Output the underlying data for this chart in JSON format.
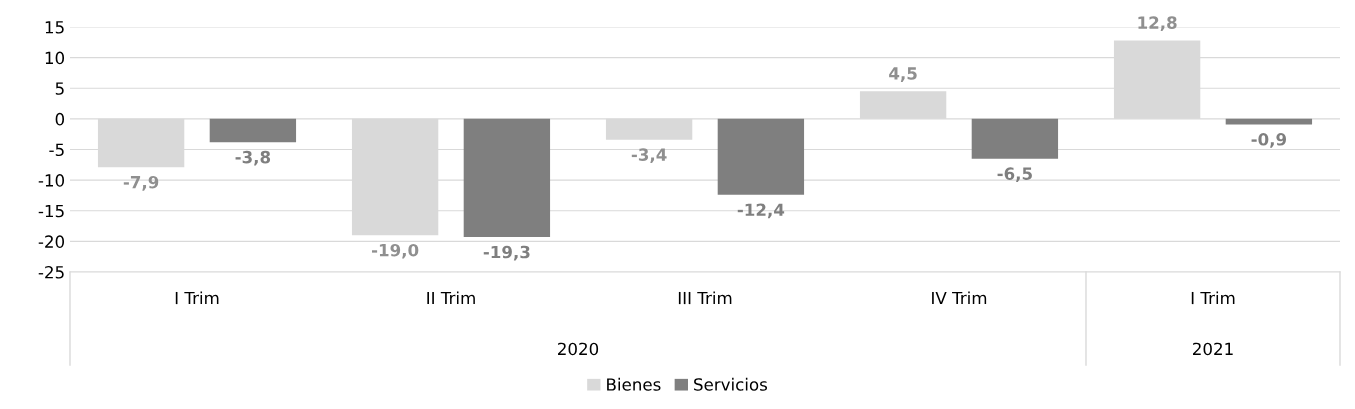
{
  "chart_data": {
    "type": "bar",
    "categories": [
      "I Trim",
      "II Trim",
      "III Trim",
      "IV Trim",
      "I Trim"
    ],
    "series": [
      {
        "name": "Bienes",
        "color": "#d9d9d9",
        "values": [
          -7.9,
          -19.0,
          -3.4,
          4.5,
          12.8
        ],
        "value_labels": [
          "-7,9",
          "-19,0",
          "-3,4",
          "4,5",
          "12,8"
        ]
      },
      {
        "name": "Servicios",
        "color": "#7f7f7f",
        "values": [
          -3.8,
          -19.3,
          -12.4,
          -6.5,
          -0.9
        ],
        "value_labels": [
          "-3,8",
          "-19,3",
          "-12,4",
          "-6,5",
          "-0,9"
        ]
      }
    ],
    "annotations": [
      "2020",
      "2021"
    ],
    "ylim": [
      -25,
      15
    ],
    "yticks": [
      -25,
      -20,
      -15,
      -10,
      -5,
      0,
      5,
      10,
      15
    ],
    "grid": "y",
    "legend": "bottom"
  }
}
